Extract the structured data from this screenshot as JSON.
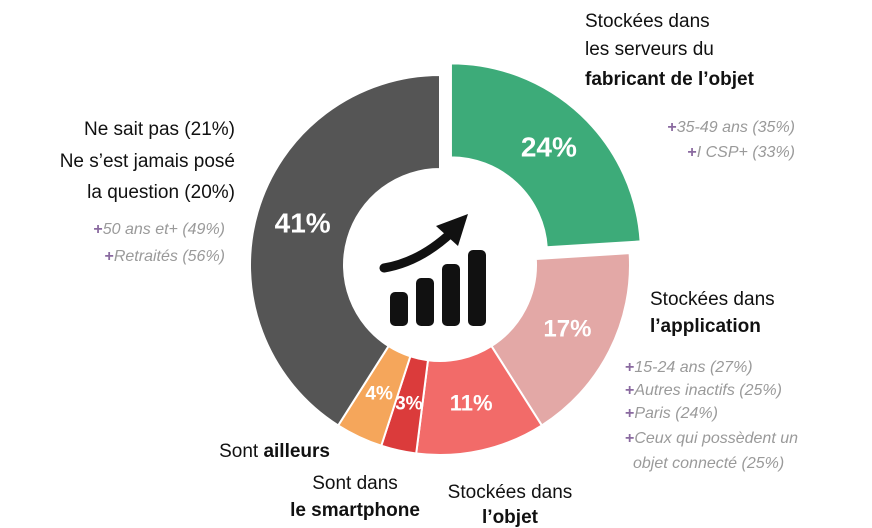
{
  "chart_data": {
    "type": "donut",
    "categories": [
      "fabricant",
      "application",
      "objet",
      "smartphone",
      "ailleurs",
      "ne sait pas"
    ],
    "values": [
      24,
      17,
      11,
      3,
      4,
      41
    ],
    "value_labels": [
      "24%",
      "17%",
      "11%",
      "3%",
      "4%",
      "41%"
    ],
    "colors": [
      "#3dab79",
      "#e3a8a6",
      "#f26b69",
      "#db3b3b",
      "#f5a65b",
      "#555555"
    ],
    "exploded": [
      0
    ],
    "bullet": "+",
    "labels": [
      [
        [
          {
            "text": "Stockées dans",
            "bold": false
          }
        ],
        [
          {
            "text": "les serveurs du",
            "bold": false
          }
        ],
        [
          {
            "text": "fabricant de l’objet",
            "bold": true
          }
        ]
      ],
      [
        [
          {
            "text": "Stockées dans",
            "bold": false
          }
        ],
        [
          {
            "text": "l’application",
            "bold": true
          }
        ]
      ],
      [
        [
          {
            "text": "Stockées dans",
            "bold": false
          }
        ],
        [
          {
            "text": "l’objet",
            "bold": true
          }
        ]
      ],
      [
        [
          {
            "text": "Sont dans",
            "bold": false
          }
        ],
        [
          {
            "text": "le smartphone",
            "bold": true
          }
        ]
      ],
      [
        [
          {
            "text": "Sont ",
            "bold": false
          },
          {
            "text": "ailleurs",
            "bold": true
          }
        ]
      ],
      [
        [
          {
            "text": "Ne sait pas (21%)",
            "bold": false
          }
        ],
        [
          {
            "text": "Ne s’est jamais posé",
            "bold": false
          }
        ],
        [
          {
            "text": "la question (20%)",
            "bold": false
          }
        ]
      ]
    ],
    "notes": [
      [
        [
          "35-49 ans (35%)"
        ],
        [
          "I CSP+ (33%)"
        ]
      ],
      [
        [
          "15-24 ans (27%)"
        ],
        [
          "Autres inactifs (25%)"
        ],
        [
          "Paris (24%)"
        ],
        [
          "Ceux qui possèdent un",
          "objet connecté (25%)"
        ]
      ],
      [],
      [],
      [],
      [
        [
          "50 ans et+ (49%)"
        ],
        [
          "Retraités (56%)"
        ]
      ]
    ]
  }
}
